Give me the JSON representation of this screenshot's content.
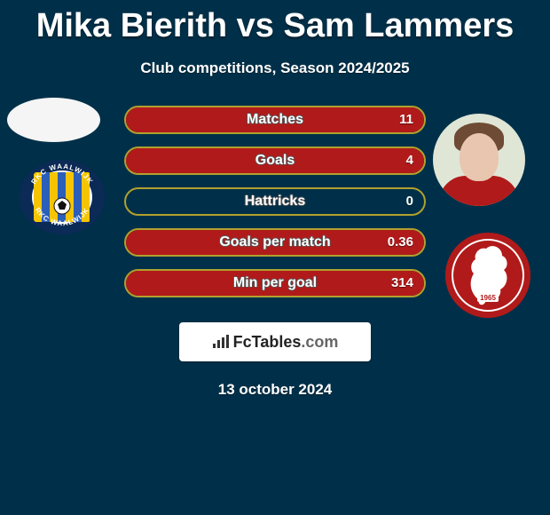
{
  "background_color": "#003049",
  "title": "Mika Bierith vs Sam Lammers",
  "title_fontsize": 38,
  "title_color": "#ffffff",
  "subtitle": "Club competitions, Season 2024/2025",
  "subtitle_fontsize": 17,
  "subtitle_color": "#ffffff",
  "colors": {
    "player1_accent": "#b0a12e",
    "player2_accent": "#b11a1a",
    "bar_label": "#ffffff"
  },
  "stats": [
    {
      "label": "Matches",
      "left_value": "",
      "right_value": "11",
      "right_fill_pct": 100
    },
    {
      "label": "Goals",
      "left_value": "",
      "right_value": "4",
      "right_fill_pct": 100
    },
    {
      "label": "Hattricks",
      "left_value": "",
      "right_value": "0",
      "right_fill_pct": 0
    },
    {
      "label": "Goals per match",
      "left_value": "",
      "right_value": "0.36",
      "right_fill_pct": 100
    },
    {
      "label": "Min per goal",
      "left_value": "",
      "right_value": "314",
      "right_fill_pct": 100
    }
  ],
  "player1": {
    "name": "Mika Bierith",
    "avatar_bg": "#f5f5f5",
    "club": {
      "name": "RKC Waalwijk",
      "ring_text_top": "RKC WAALWIJK",
      "ring_text_bottom": "RKC WAALWIJK",
      "outer_ring_color": "#0b2a55",
      "inner_disc_color": "#ffffff",
      "stripe_color_a": "#f6c400",
      "stripe_color_b": "#2b5fb8",
      "ball_color": "#111111"
    }
  },
  "player2": {
    "name": "Sam Lammers",
    "avatar_bg": "#dfe6d6",
    "hair_color": "#6e4b34",
    "skin_color": "#e8c6b0",
    "shirt_color": "#b11a1a",
    "club": {
      "name": "FC Twente",
      "disc_color": "#b11a1a",
      "horse_color": "#ffffff",
      "year": "1965"
    }
  },
  "attribution": {
    "brand_left": "Fc",
    "brand_right": "Tables",
    "tld": ".com"
  },
  "date": "13 october 2024",
  "date_fontsize": 17
}
